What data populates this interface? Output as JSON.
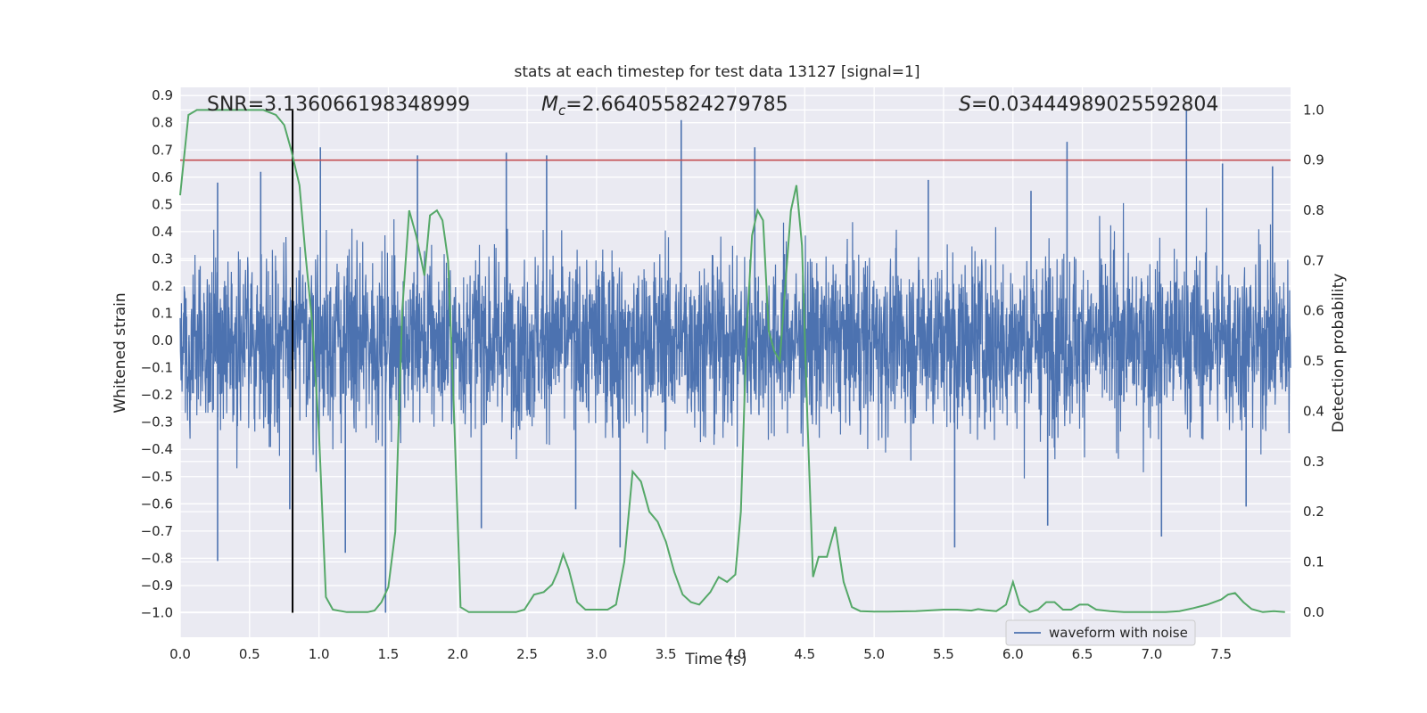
{
  "chart_data": {
    "type": "line",
    "title": "stats at each timestep for test data 13127 [signal=1]",
    "xlabel": "Time (s)",
    "ylabel_left": "Whitened strain",
    "ylabel_right": "Detection probability",
    "xlim": [
      0.0,
      8.0
    ],
    "ylim_left": [
      -1.09,
      0.93
    ],
    "ylim_right": [
      -0.05,
      1.045
    ],
    "x_ticks": [
      "0.0",
      "0.5",
      "1.0",
      "1.5",
      "2.0",
      "2.5",
      "3.0",
      "3.5",
      "4.0",
      "4.5",
      "5.0",
      "5.5",
      "6.0",
      "6.5",
      "7.0",
      "7.5"
    ],
    "y_left_ticks": [
      "0.9",
      "0.8",
      "0.7",
      "0.6",
      "0.5",
      "0.4",
      "0.3",
      "0.2",
      "0.1",
      "0.0",
      "−0.1",
      "−0.2",
      "−0.3",
      "−0.4",
      "−0.5",
      "−0.6",
      "−0.7",
      "−0.8",
      "−0.9",
      "−1.0"
    ],
    "y_right_ticks": [
      "1.0",
      "0.9",
      "0.8",
      "0.7",
      "0.6",
      "0.5",
      "0.4",
      "0.3",
      "0.2",
      "0.1",
      "0.0"
    ],
    "annotations": {
      "snr": "SNR=3.136066198348999",
      "mc_symbol": "M",
      "mc_sub": "c",
      "mc_value": "=2.664055824279785",
      "s_symbol": "S",
      "s_value": "=0.03444989025592804"
    },
    "legend": [
      "waveform with noise"
    ],
    "threshold": 0.9,
    "marker_time": 0.81,
    "series": [
      {
        "name": "waveform with noise",
        "axis": "left",
        "color": "#4c72b0",
        "note": "dense noisy strain; envelope approx ±0.3 with peaks to ~0.8 and troughs to ~-1.0",
        "spikes_up": [
          [
            0.27,
            0.58
          ],
          [
            0.58,
            0.62
          ],
          [
            1.01,
            0.71
          ],
          [
            1.71,
            0.68
          ],
          [
            2.35,
            0.69
          ],
          [
            2.64,
            0.68
          ],
          [
            3.61,
            0.81
          ],
          [
            4.14,
            0.71
          ],
          [
            5.39,
            0.59
          ],
          [
            6.13,
            0.55
          ],
          [
            6.39,
            0.73
          ],
          [
            7.25,
            0.85
          ],
          [
            7.51,
            0.65
          ],
          [
            7.87,
            0.64
          ]
        ],
        "spikes_down": [
          [
            0.27,
            -0.81
          ],
          [
            0.79,
            -0.62
          ],
          [
            1.19,
            -0.78
          ],
          [
            1.48,
            -1.0
          ],
          [
            2.17,
            -0.69
          ],
          [
            2.85,
            -0.62
          ],
          [
            3.17,
            -0.76
          ],
          [
            5.58,
            -0.76
          ],
          [
            6.25,
            -0.68
          ],
          [
            7.07,
            -0.72
          ],
          [
            7.68,
            -0.61
          ]
        ]
      },
      {
        "name": "detection probability",
        "axis": "right",
        "color": "#55a868",
        "x": [
          0.0,
          0.06,
          0.12,
          0.2,
          0.3,
          0.4,
          0.5,
          0.6,
          0.69,
          0.75,
          0.8,
          0.86,
          0.9,
          0.95,
          1.0,
          1.05,
          1.1,
          1.2,
          1.3,
          1.35,
          1.4,
          1.45,
          1.5,
          1.55,
          1.6,
          1.65,
          1.7,
          1.76,
          1.8,
          1.85,
          1.89,
          1.93,
          1.97,
          2.02,
          2.08,
          2.15,
          2.25,
          2.35,
          2.42,
          2.48,
          2.55,
          2.62,
          2.68,
          2.72,
          2.76,
          2.8,
          2.86,
          2.92,
          3.0,
          3.08,
          3.14,
          3.2,
          3.26,
          3.32,
          3.38,
          3.44,
          3.5,
          3.56,
          3.62,
          3.68,
          3.74,
          3.82,
          3.88,
          3.94,
          4.0,
          4.04,
          4.08,
          4.12,
          4.16,
          4.2,
          4.24,
          4.28,
          4.32,
          4.36,
          4.4,
          4.44,
          4.48,
          4.52,
          4.56,
          4.6,
          4.66,
          4.72,
          4.78,
          4.84,
          4.9,
          5.0,
          5.1,
          5.3,
          5.5,
          5.6,
          5.7,
          5.75,
          5.8,
          5.88,
          5.95,
          6.0,
          6.05,
          6.12,
          6.18,
          6.24,
          6.3,
          6.36,
          6.42,
          6.48,
          6.54,
          6.6,
          6.7,
          6.8,
          6.9,
          7.0,
          7.1,
          7.2,
          7.3,
          7.4,
          7.5,
          7.55,
          7.6,
          7.66,
          7.72,
          7.8,
          7.88,
          7.96
        ],
        "y": [
          0.83,
          0.99,
          1.0,
          1.0,
          1.0,
          1.0,
          1.0,
          1.0,
          0.99,
          0.97,
          0.92,
          0.85,
          0.72,
          0.58,
          0.36,
          0.03,
          0.005,
          0.0,
          0.0,
          0.0,
          0.003,
          0.02,
          0.05,
          0.16,
          0.6,
          0.8,
          0.75,
          0.67,
          0.79,
          0.8,
          0.78,
          0.7,
          0.42,
          0.01,
          0.0,
          0.0,
          0.0,
          0.0,
          0.0,
          0.005,
          0.035,
          0.04,
          0.055,
          0.08,
          0.115,
          0.085,
          0.02,
          0.005,
          0.005,
          0.005,
          0.015,
          0.1,
          0.28,
          0.26,
          0.2,
          0.18,
          0.14,
          0.08,
          0.035,
          0.02,
          0.015,
          0.04,
          0.07,
          0.06,
          0.075,
          0.2,
          0.55,
          0.75,
          0.8,
          0.78,
          0.56,
          0.52,
          0.5,
          0.65,
          0.8,
          0.85,
          0.73,
          0.38,
          0.07,
          0.11,
          0.11,
          0.17,
          0.06,
          0.01,
          0.002,
          0.001,
          0.001,
          0.002,
          0.005,
          0.005,
          0.003,
          0.006,
          0.004,
          0.002,
          0.015,
          0.06,
          0.015,
          0.0,
          0.005,
          0.02,
          0.02,
          0.005,
          0.005,
          0.015,
          0.015,
          0.005,
          0.002,
          0.0,
          0.0,
          0.0,
          0.0,
          0.002,
          0.008,
          0.015,
          0.025,
          0.035,
          0.038,
          0.02,
          0.006,
          0.0,
          0.002,
          0.0
        ]
      }
    ]
  }
}
